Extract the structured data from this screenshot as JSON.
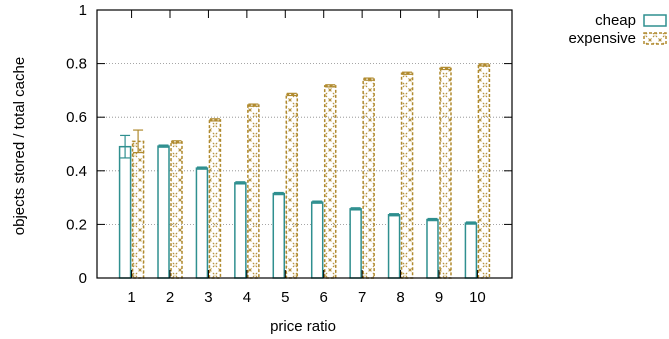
{
  "chart_data": {
    "type": "bar",
    "title": "",
    "xlabel": "price ratio",
    "ylabel": "objects stored / total cache",
    "categories": [
      "1",
      "2",
      "3",
      "4",
      "5",
      "6",
      "7",
      "8",
      "9",
      "10"
    ],
    "yticks": [
      "0",
      "0.2",
      "0.4",
      "0.6",
      "0.8",
      "1"
    ],
    "ylim": [
      0,
      1
    ],
    "grid": "horizontal dotted",
    "legend_position": "top-right, outside plot",
    "series": [
      {
        "name": "cheap",
        "color": "#2f8f8f",
        "pattern": "solid-outline",
        "values": [
          0.49,
          0.492,
          0.41,
          0.355,
          0.315,
          0.283,
          0.258,
          0.236,
          0.218,
          0.205
        ],
        "error": [
          0.042,
          0.004,
          0.004,
          0.004,
          0.004,
          0.004,
          0.004,
          0.004,
          0.004,
          0.004
        ]
      },
      {
        "name": "expensive",
        "color": "#b08a2e",
        "pattern": "dashed-crosshatch",
        "values": [
          0.51,
          0.508,
          0.59,
          0.645,
          0.685,
          0.717,
          0.742,
          0.764,
          0.782,
          0.795
        ],
        "error": [
          0.042,
          0.004,
          0.004,
          0.004,
          0.004,
          0.004,
          0.004,
          0.004,
          0.004,
          0.004
        ]
      }
    ]
  }
}
